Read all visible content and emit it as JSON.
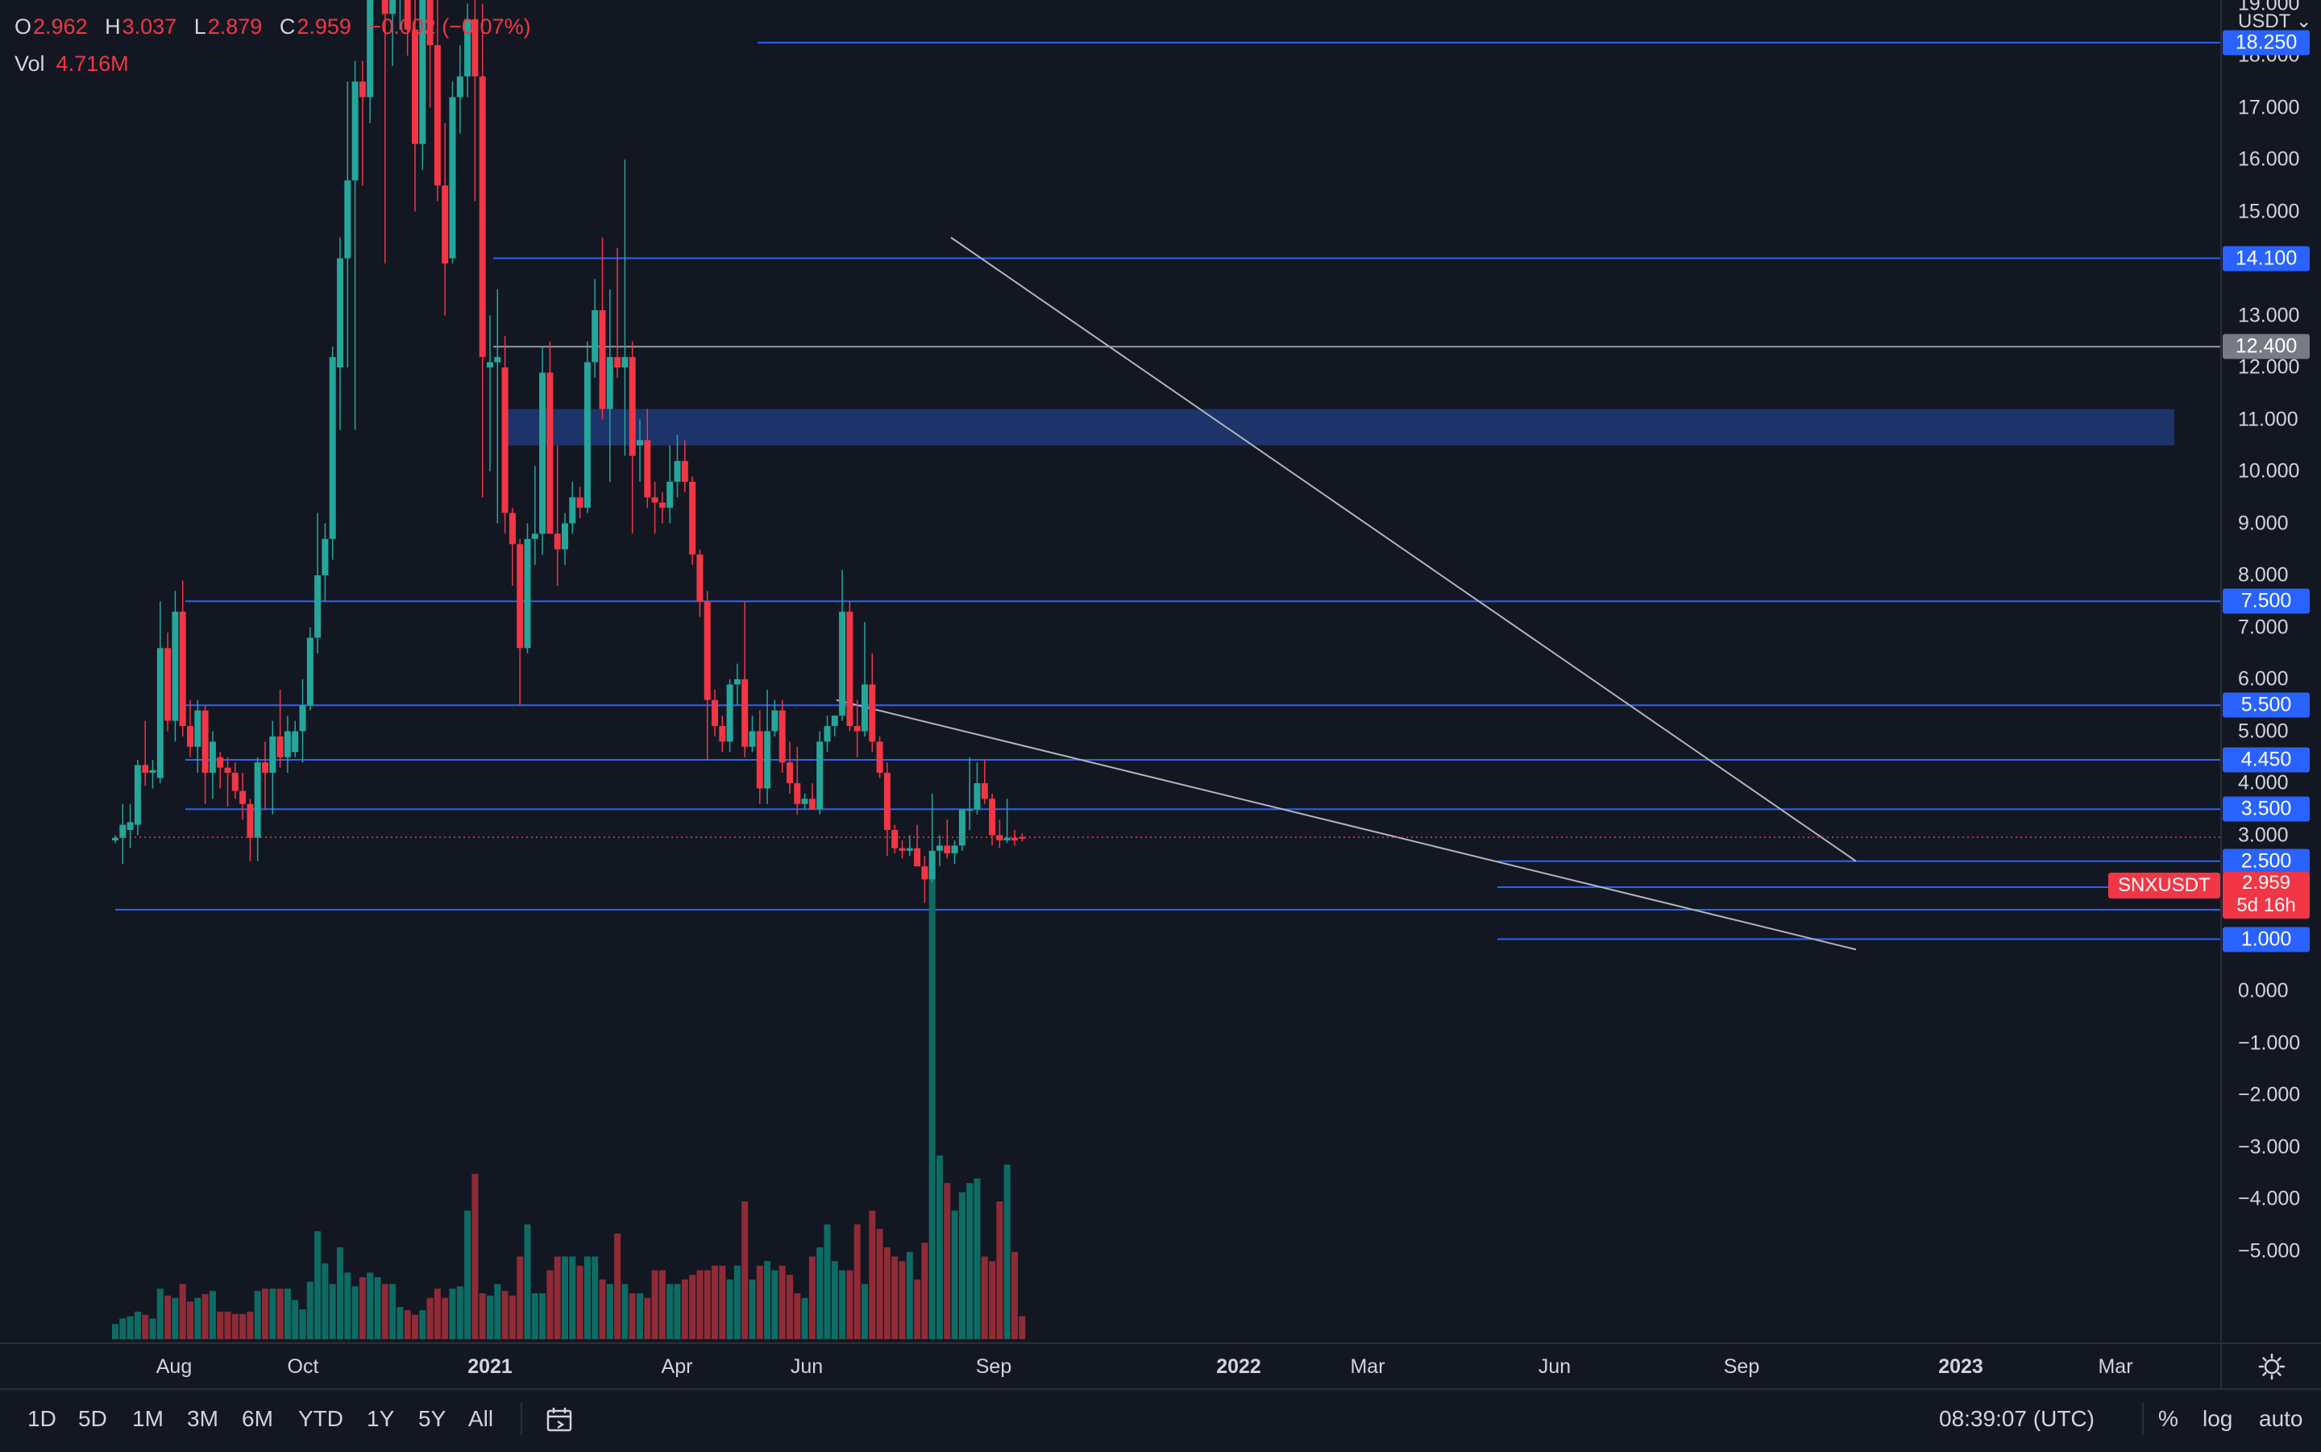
{
  "ohlc": {
    "o_label": "O",
    "o_value": "2.962",
    "h_label": "H",
    "h_value": "3.037",
    "l_label": "L",
    "l_value": "2.879",
    "c_label": "C",
    "c_value": "2.959",
    "change": "−0.002 (−0.07%)"
  },
  "volume": {
    "label": "Vol",
    "value": "4.716M"
  },
  "symbol_badge": "SNXUSDT",
  "current_price": {
    "price": "2.959",
    "countdown": "5d 16h"
  },
  "price_axis": {
    "currency": "USDT",
    "ticks": [
      "19.000",
      "18.000",
      "17.000",
      "16.000",
      "15.000",
      "14.000",
      "13.000",
      "12.000",
      "11.000",
      "10.000",
      "9.000",
      "8.000",
      "7.000",
      "6.000",
      "5.000",
      "4.000",
      "3.000",
      "0.000",
      "−1.000",
      "−2.000",
      "−3.000",
      "−4.000",
      "−5.000"
    ],
    "level_labels": [
      {
        "value": "18.250",
        "color": "#2962ff"
      },
      {
        "value": "14.100",
        "color": "#2962ff"
      },
      {
        "value": "12.400",
        "color": "#787b86"
      },
      {
        "value": "7.500",
        "color": "#2962ff"
      },
      {
        "value": "5.500",
        "color": "#2962ff"
      },
      {
        "value": "4.450",
        "color": "#2962ff"
      },
      {
        "value": "3.500",
        "color": "#2962ff"
      },
      {
        "value": "2.500",
        "color": "#2962ff"
      },
      {
        "value": "2.000",
        "color": "#2962ff"
      },
      {
        "value": "1.000",
        "color": "#2962ff"
      }
    ]
  },
  "time_axis": {
    "labels": [
      {
        "text": "Aug",
        "bold": false
      },
      {
        "text": "Oct",
        "bold": false
      },
      {
        "text": "2021",
        "bold": true
      },
      {
        "text": "Apr",
        "bold": false
      },
      {
        "text": "Jun",
        "bold": false
      },
      {
        "text": "Sep",
        "bold": false
      },
      {
        "text": "2022",
        "bold": true
      },
      {
        "text": "Mar",
        "bold": false
      },
      {
        "text": "Jun",
        "bold": false
      },
      {
        "text": "Sep",
        "bold": false
      },
      {
        "text": "2023",
        "bold": true
      },
      {
        "text": "Mar",
        "bold": false
      }
    ]
  },
  "bottom_bar": {
    "ranges": [
      "1D",
      "5D",
      "1M",
      "3M",
      "6M",
      "YTD",
      "1Y",
      "5Y",
      "All"
    ],
    "time": "08:39:07 (UTC)",
    "percent": "%",
    "log": "log",
    "auto": "auto"
  },
  "colors": {
    "background": "#131722",
    "up": "#26a69a",
    "down": "#f23645",
    "volume_up": "#0e6b63",
    "volume_down": "#8f2b36",
    "level_line": "#2962ff",
    "zone": "#1e3a75",
    "trendline": "#b2b5be"
  },
  "chart_data": {
    "type": "candlestick",
    "symbol": "SNXUSDT",
    "interval": "weekly",
    "y_range_price": [
      0,
      19.7
    ],
    "horizontal_levels": [
      18.25,
      14.1,
      12.4,
      7.5,
      5.5,
      4.45,
      3.5,
      2.5,
      2.0,
      1.0
    ],
    "resistance_zone": [
      10.5,
      11.2
    ],
    "trendlines": [
      {
        "from": [
          "2021-08-16",
          14.5
        ],
        "to": [
          "2022-11-01",
          2.5
        ]
      },
      {
        "from": [
          "2021-06-21",
          5.6
        ],
        "to": [
          "2022-11-01",
          0.8
        ]
      }
    ],
    "candles": [
      {
        "o": 2.9,
        "h": 3.0,
        "l": 2.85,
        "c": 2.95
      },
      {
        "o": 2.95,
        "h": 3.6,
        "l": 2.45,
        "c": 3.2
      },
      {
        "o": 3.1,
        "h": 3.6,
        "l": 2.75,
        "c": 3.25
      },
      {
        "o": 3.2,
        "h": 4.45,
        "l": 3.0,
        "c": 4.35
      },
      {
        "o": 4.35,
        "h": 5.2,
        "l": 3.95,
        "c": 4.2
      },
      {
        "o": 4.2,
        "h": 4.45,
        "l": 3.9,
        "c": 4.25
      },
      {
        "o": 4.1,
        "h": 7.5,
        "l": 4.0,
        "c": 6.6
      },
      {
        "o": 6.6,
        "h": 6.9,
        "l": 5.0,
        "c": 5.2
      },
      {
        "o": 5.2,
        "h": 7.7,
        "l": 4.8,
        "c": 7.3
      },
      {
        "o": 7.3,
        "h": 7.9,
        "l": 4.9,
        "c": 5.1
      },
      {
        "o": 5.1,
        "h": 5.6,
        "l": 4.5,
        "c": 4.7
      },
      {
        "o": 4.7,
        "h": 5.6,
        "l": 4.2,
        "c": 5.4
      },
      {
        "o": 5.4,
        "h": 5.5,
        "l": 3.6,
        "c": 4.2
      },
      {
        "o": 4.2,
        "h": 5.0,
        "l": 3.7,
        "c": 4.8
      },
      {
        "o": 4.5,
        "h": 4.6,
        "l": 3.9,
        "c": 4.3
      },
      {
        "o": 4.3,
        "h": 4.5,
        "l": 3.55,
        "c": 4.2
      },
      {
        "o": 4.2,
        "h": 4.4,
        "l": 3.7,
        "c": 3.85
      },
      {
        "o": 3.85,
        "h": 4.2,
        "l": 3.3,
        "c": 3.6
      },
      {
        "o": 3.6,
        "h": 3.7,
        "l": 2.5,
        "c": 2.95
      },
      {
        "o": 2.95,
        "h": 4.5,
        "l": 2.5,
        "c": 4.4
      },
      {
        "o": 4.4,
        "h": 4.8,
        "l": 3.5,
        "c": 4.2
      },
      {
        "o": 4.2,
        "h": 5.2,
        "l": 3.4,
        "c": 4.9
      },
      {
        "o": 4.9,
        "h": 5.8,
        "l": 4.3,
        "c": 4.5
      },
      {
        "o": 4.5,
        "h": 5.3,
        "l": 4.2,
        "c": 5.0
      },
      {
        "o": 4.6,
        "h": 5.2,
        "l": 4.5,
        "c": 5.0
      },
      {
        "o": 5.0,
        "h": 6.0,
        "l": 4.4,
        "c": 5.5
      },
      {
        "o": 5.5,
        "h": 7.0,
        "l": 5.4,
        "c": 6.8
      },
      {
        "o": 6.8,
        "h": 9.2,
        "l": 6.5,
        "c": 8.0
      },
      {
        "o": 8.0,
        "h": 9.0,
        "l": 7.5,
        "c": 8.7
      },
      {
        "o": 8.7,
        "h": 12.4,
        "l": 8.3,
        "c": 12.2
      },
      {
        "o": 12.0,
        "h": 14.5,
        "l": 10.8,
        "c": 14.1
      },
      {
        "o": 14.1,
        "h": 17.5,
        "l": 12.0,
        "c": 15.6
      },
      {
        "o": 15.6,
        "h": 17.9,
        "l": 10.8,
        "c": 17.5
      },
      {
        "o": 17.5,
        "h": 17.9,
        "l": 15.5,
        "c": 17.2
      },
      {
        "o": 17.2,
        "h": 21.0,
        "l": 16.7,
        "c": 19.7
      },
      {
        "o": 19.7,
        "h": 22.0,
        "l": 19.2,
        "c": 21.0
      },
      {
        "o": 21.0,
        "h": 22.0,
        "l": 14.0,
        "c": 18.8
      },
      {
        "o": 18.8,
        "h": 21.0,
        "l": 17.8,
        "c": 19.7
      },
      {
        "o": 19.7,
        "h": 21.3,
        "l": 18.5,
        "c": 20.8
      },
      {
        "o": 20.8,
        "h": 21.5,
        "l": 18.0,
        "c": 18.5
      },
      {
        "o": 18.5,
        "h": 19.3,
        "l": 15.0,
        "c": 16.3
      },
      {
        "o": 16.3,
        "h": 19.7,
        "l": 15.8,
        "c": 19.2
      },
      {
        "o": 19.2,
        "h": 20.5,
        "l": 17.0,
        "c": 18.2
      },
      {
        "o": 18.2,
        "h": 20.2,
        "l": 15.2,
        "c": 15.5
      },
      {
        "o": 15.5,
        "h": 16.7,
        "l": 13.0,
        "c": 14.0
      },
      {
        "o": 14.1,
        "h": 17.5,
        "l": 14.0,
        "c": 17.2
      },
      {
        "o": 17.2,
        "h": 18.2,
        "l": 16.5,
        "c": 17.6
      },
      {
        "o": 17.6,
        "h": 19.0,
        "l": 17.2,
        "c": 18.7
      },
      {
        "o": 18.7,
        "h": 20.0,
        "l": 15.2,
        "c": 17.6
      },
      {
        "o": 17.6,
        "h": 19.0,
        "l": 9.5,
        "c": 12.2
      },
      {
        "o": 12.0,
        "h": 13.0,
        "l": 10.0,
        "c": 12.1
      },
      {
        "o": 12.1,
        "h": 13.5,
        "l": 9.0,
        "c": 12.2
      },
      {
        "o": 12.0,
        "h": 12.6,
        "l": 8.8,
        "c": 9.2
      },
      {
        "o": 9.2,
        "h": 9.3,
        "l": 7.8,
        "c": 8.6
      },
      {
        "o": 8.6,
        "h": 8.7,
        "l": 5.5,
        "c": 6.6
      },
      {
        "o": 6.6,
        "h": 9.0,
        "l": 6.5,
        "c": 8.7
      },
      {
        "o": 8.7,
        "h": 10.1,
        "l": 8.2,
        "c": 8.8
      },
      {
        "o": 8.8,
        "h": 12.4,
        "l": 8.4,
        "c": 11.9
      },
      {
        "o": 11.9,
        "h": 12.5,
        "l": 8.8,
        "c": 8.8
      },
      {
        "o": 8.8,
        "h": 10.5,
        "l": 7.8,
        "c": 8.5
      },
      {
        "o": 8.5,
        "h": 9.2,
        "l": 8.2,
        "c": 9.0
      },
      {
        "o": 9.0,
        "h": 9.8,
        "l": 8.8,
        "c": 9.5
      },
      {
        "o": 9.5,
        "h": 9.7,
        "l": 9.1,
        "c": 9.3
      },
      {
        "o": 9.3,
        "h": 12.5,
        "l": 9.2,
        "c": 12.1
      },
      {
        "o": 12.1,
        "h": 13.7,
        "l": 11.8,
        "c": 13.1
      },
      {
        "o": 13.1,
        "h": 14.5,
        "l": 11.0,
        "c": 11.2
      },
      {
        "o": 11.2,
        "h": 13.5,
        "l": 9.8,
        "c": 12.2
      },
      {
        "o": 12.2,
        "h": 14.3,
        "l": 11.8,
        "c": 12.0
      },
      {
        "o": 12.0,
        "h": 16.0,
        "l": 10.3,
        "c": 12.2
      },
      {
        "o": 12.2,
        "h": 12.5,
        "l": 8.8,
        "c": 10.3
      },
      {
        "o": 10.5,
        "h": 11.0,
        "l": 9.8,
        "c": 10.6
      },
      {
        "o": 10.6,
        "h": 11.2,
        "l": 9.3,
        "c": 9.5
      },
      {
        "o": 9.5,
        "h": 9.8,
        "l": 8.8,
        "c": 9.4
      },
      {
        "o": 9.4,
        "h": 9.6,
        "l": 9.0,
        "c": 9.3
      },
      {
        "o": 9.3,
        "h": 10.5,
        "l": 9.0,
        "c": 9.8
      },
      {
        "o": 9.8,
        "h": 10.7,
        "l": 9.5,
        "c": 10.2
      },
      {
        "o": 10.2,
        "h": 10.6,
        "l": 9.6,
        "c": 9.8
      },
      {
        "o": 9.8,
        "h": 9.9,
        "l": 8.2,
        "c": 8.4
      },
      {
        "o": 8.4,
        "h": 8.5,
        "l": 7.2,
        "c": 7.5
      },
      {
        "o": 7.5,
        "h": 7.7,
        "l": 4.45,
        "c": 5.6
      },
      {
        "o": 5.6,
        "h": 5.8,
        "l": 4.9,
        "c": 5.1
      },
      {
        "o": 5.1,
        "h": 5.3,
        "l": 4.6,
        "c": 4.8
      },
      {
        "o": 4.8,
        "h": 6.0,
        "l": 4.6,
        "c": 5.9
      },
      {
        "o": 5.9,
        "h": 6.3,
        "l": 5.5,
        "c": 6.0
      },
      {
        "o": 6.0,
        "h": 7.5,
        "l": 4.5,
        "c": 4.7
      },
      {
        "o": 4.7,
        "h": 5.3,
        "l": 4.6,
        "c": 5.0
      },
      {
        "o": 5.0,
        "h": 5.4,
        "l": 3.6,
        "c": 3.9
      },
      {
        "o": 3.9,
        "h": 5.8,
        "l": 3.6,
        "c": 5.0
      },
      {
        "o": 5.0,
        "h": 5.6,
        "l": 4.9,
        "c": 5.4
      },
      {
        "o": 5.4,
        "h": 5.6,
        "l": 4.2,
        "c": 4.4
      },
      {
        "o": 4.4,
        "h": 4.8,
        "l": 3.8,
        "c": 4.0
      },
      {
        "o": 4.0,
        "h": 4.7,
        "l": 3.4,
        "c": 3.6
      },
      {
        "o": 3.6,
        "h": 3.8,
        "l": 3.5,
        "c": 3.7
      },
      {
        "o": 3.7,
        "h": 4.0,
        "l": 3.5,
        "c": 3.5
      },
      {
        "o": 3.5,
        "h": 5.0,
        "l": 3.4,
        "c": 4.8
      },
      {
        "o": 4.8,
        "h": 5.3,
        "l": 4.6,
        "c": 5.1
      },
      {
        "o": 5.1,
        "h": 5.3,
        "l": 4.9,
        "c": 5.3
      },
      {
        "o": 5.3,
        "h": 8.1,
        "l": 5.2,
        "c": 7.3
      },
      {
        "o": 7.3,
        "h": 7.5,
        "l": 5.0,
        "c": 5.1
      },
      {
        "o": 5.1,
        "h": 5.6,
        "l": 4.5,
        "c": 5.0
      },
      {
        "o": 5.0,
        "h": 7.1,
        "l": 4.9,
        "c": 5.9
      },
      {
        "o": 5.9,
        "h": 6.5,
        "l": 4.6,
        "c": 4.8
      },
      {
        "o": 4.8,
        "h": 4.9,
        "l": 4.1,
        "c": 4.2
      },
      {
        "o": 4.2,
        "h": 4.4,
        "l": 2.6,
        "c": 3.1
      },
      {
        "o": 3.1,
        "h": 3.2,
        "l": 2.65,
        "c": 2.75
      },
      {
        "o": 2.75,
        "h": 2.9,
        "l": 2.55,
        "c": 2.7
      },
      {
        "o": 2.7,
        "h": 3.0,
        "l": 2.6,
        "c": 2.75
      },
      {
        "o": 2.75,
        "h": 3.2,
        "l": 2.5,
        "c": 2.4
      },
      {
        "o": 2.4,
        "h": 2.6,
        "l": 1.7,
        "c": 2.15
      },
      {
        "o": 2.15,
        "h": 3.8,
        "l": 2.1,
        "c": 2.7
      },
      {
        "o": 2.7,
        "h": 3.0,
        "l": 2.4,
        "c": 2.8
      },
      {
        "o": 2.8,
        "h": 3.3,
        "l": 2.55,
        "c": 2.65
      },
      {
        "o": 2.65,
        "h": 2.9,
        "l": 2.45,
        "c": 2.8
      },
      {
        "o": 2.8,
        "h": 3.5,
        "l": 2.7,
        "c": 3.5
      },
      {
        "o": 3.5,
        "h": 4.5,
        "l": 3.1,
        "c": 3.5
      },
      {
        "o": 3.5,
        "h": 4.4,
        "l": 3.4,
        "c": 4.0
      },
      {
        "o": 4.0,
        "h": 4.45,
        "l": 3.6,
        "c": 3.7
      },
      {
        "o": 3.7,
        "h": 3.8,
        "l": 2.8,
        "c": 3.0
      },
      {
        "o": 3.0,
        "h": 3.3,
        "l": 2.75,
        "c": 2.9
      },
      {
        "o": 2.9,
        "h": 3.7,
        "l": 2.85,
        "c": 2.95
      },
      {
        "o": 2.95,
        "h": 3.1,
        "l": 2.8,
        "c": 2.9
      },
      {
        "o": 2.962,
        "h": 3.037,
        "l": 2.879,
        "c": 2.959
      }
    ],
    "volume": [
      0.33,
      0.45,
      0.5,
      0.6,
      0.53,
      0.45,
      1.1,
      0.95,
      0.9,
      1.2,
      0.82,
      0.9,
      0.98,
      1.05,
      0.6,
      0.6,
      0.55,
      0.55,
      0.6,
      1.05,
      1.1,
      1.1,
      1.1,
      1.1,
      0.85,
      0.65,
      1.25,
      2.35,
      1.65,
      1.2,
      2.0,
      1.45,
      1.15,
      1.35,
      1.45,
      1.35,
      1.2,
      1.2,
      0.7,
      0.63,
      0.53,
      0.63,
      0.9,
      1.1,
      0.9,
      1.1,
      1.15,
      2.8,
      3.6,
      1.0,
      0.95,
      1.2,
      1.05,
      0.95,
      1.8,
      2.5,
      1.0,
      1.0,
      1.5,
      1.8,
      1.8,
      1.8,
      1.6,
      1.8,
      1.8,
      1.3,
      1.2,
      2.3,
      1.2,
      1.0,
      1.0,
      0.9,
      1.5,
      1.5,
      1.2,
      1.2,
      1.3,
      1.4,
      1.5,
      1.5,
      1.6,
      1.6,
      1.3,
      1.6,
      3.0,
      1.3,
      1.6,
      1.7,
      1.5,
      1.6,
      1.4,
      1.0,
      0.9,
      1.8,
      2.0,
      2.5,
      1.7,
      1.5,
      1.5,
      2.5,
      1.2,
      2.8,
      2.4,
      2.0,
      1.8,
      1.7,
      1.9,
      1.3,
      2.1,
      10.2,
      4.0,
      3.4,
      2.8,
      3.2,
      3.4,
      3.5,
      1.8,
      1.7,
      3.0,
      3.8,
      1.9,
      0.5
    ]
  }
}
